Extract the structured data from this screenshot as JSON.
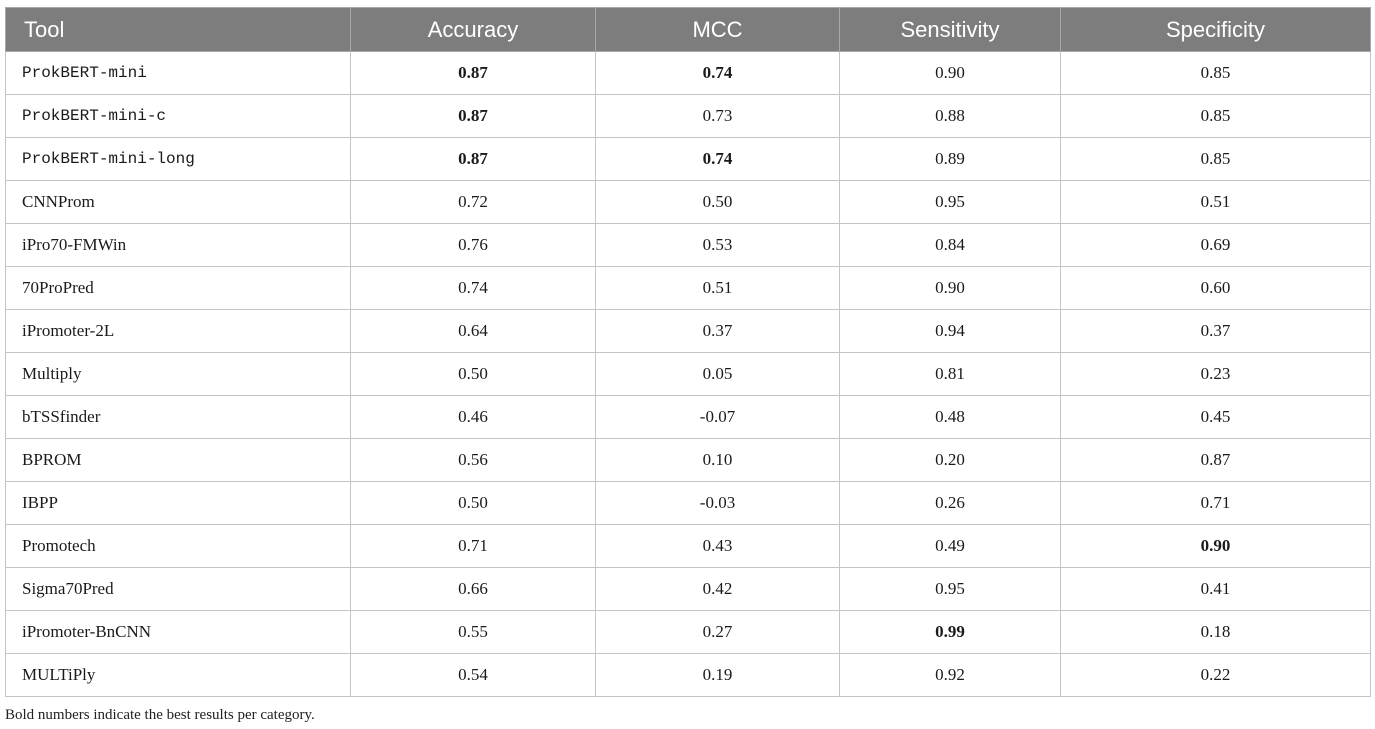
{
  "table": {
    "headers": [
      "Tool",
      "Accuracy",
      "MCC",
      "Sensitivity",
      "Specificity"
    ],
    "rows": [
      {
        "tool": "ProkBERT-mini",
        "mono": true,
        "values": [
          "0.87",
          "0.74",
          "0.90",
          "0.85"
        ],
        "bold": [
          true,
          true,
          false,
          false
        ]
      },
      {
        "tool": "ProkBERT-mini-c",
        "mono": true,
        "values": [
          "0.87",
          "0.73",
          "0.88",
          "0.85"
        ],
        "bold": [
          true,
          false,
          false,
          false
        ]
      },
      {
        "tool": "ProkBERT-mini-long",
        "mono": true,
        "values": [
          "0.87",
          "0.74",
          "0.89",
          "0.85"
        ],
        "bold": [
          true,
          true,
          false,
          false
        ]
      },
      {
        "tool": "CNNProm",
        "mono": false,
        "values": [
          "0.72",
          "0.50",
          "0.95",
          "0.51"
        ],
        "bold": [
          false,
          false,
          false,
          false
        ]
      },
      {
        "tool": "iPro70-FMWin",
        "mono": false,
        "values": [
          "0.76",
          "0.53",
          "0.84",
          "0.69"
        ],
        "bold": [
          false,
          false,
          false,
          false
        ]
      },
      {
        "tool": "70ProPred",
        "mono": false,
        "values": [
          "0.74",
          "0.51",
          "0.90",
          "0.60"
        ],
        "bold": [
          false,
          false,
          false,
          false
        ]
      },
      {
        "tool": "iPromoter-2L",
        "mono": false,
        "values": [
          "0.64",
          "0.37",
          "0.94",
          "0.37"
        ],
        "bold": [
          false,
          false,
          false,
          false
        ]
      },
      {
        "tool": "Multiply",
        "mono": false,
        "values": [
          "0.50",
          "0.05",
          "0.81",
          "0.23"
        ],
        "bold": [
          false,
          false,
          false,
          false
        ]
      },
      {
        "tool": "bTSSfinder",
        "mono": false,
        "values": [
          "0.46",
          "-0.07",
          "0.48",
          "0.45"
        ],
        "bold": [
          false,
          false,
          false,
          false
        ]
      },
      {
        "tool": "BPROM",
        "mono": false,
        "values": [
          "0.56",
          "0.10",
          "0.20",
          "0.87"
        ],
        "bold": [
          false,
          false,
          false,
          false
        ]
      },
      {
        "tool": "IBPP",
        "mono": false,
        "values": [
          "0.50",
          "-0.03",
          "0.26",
          "0.71"
        ],
        "bold": [
          false,
          false,
          false,
          false
        ]
      },
      {
        "tool": "Promotech",
        "mono": false,
        "values": [
          "0.71",
          "0.43",
          "0.49",
          "0.90"
        ],
        "bold": [
          false,
          false,
          false,
          true
        ]
      },
      {
        "tool": "Sigma70Pred",
        "mono": false,
        "values": [
          "0.66",
          "0.42",
          "0.95",
          "0.41"
        ],
        "bold": [
          false,
          false,
          false,
          false
        ]
      },
      {
        "tool": "iPromoter-BnCNN",
        "mono": false,
        "values": [
          "0.55",
          "0.27",
          "0.99",
          "0.18"
        ],
        "bold": [
          false,
          false,
          true,
          false
        ]
      },
      {
        "tool": "MULTiPly",
        "mono": false,
        "values": [
          "0.54",
          "0.19",
          "0.92",
          "0.22"
        ],
        "bold": [
          false,
          false,
          false,
          false
        ]
      }
    ]
  },
  "footnote": "Bold numbers indicate the best results per category."
}
